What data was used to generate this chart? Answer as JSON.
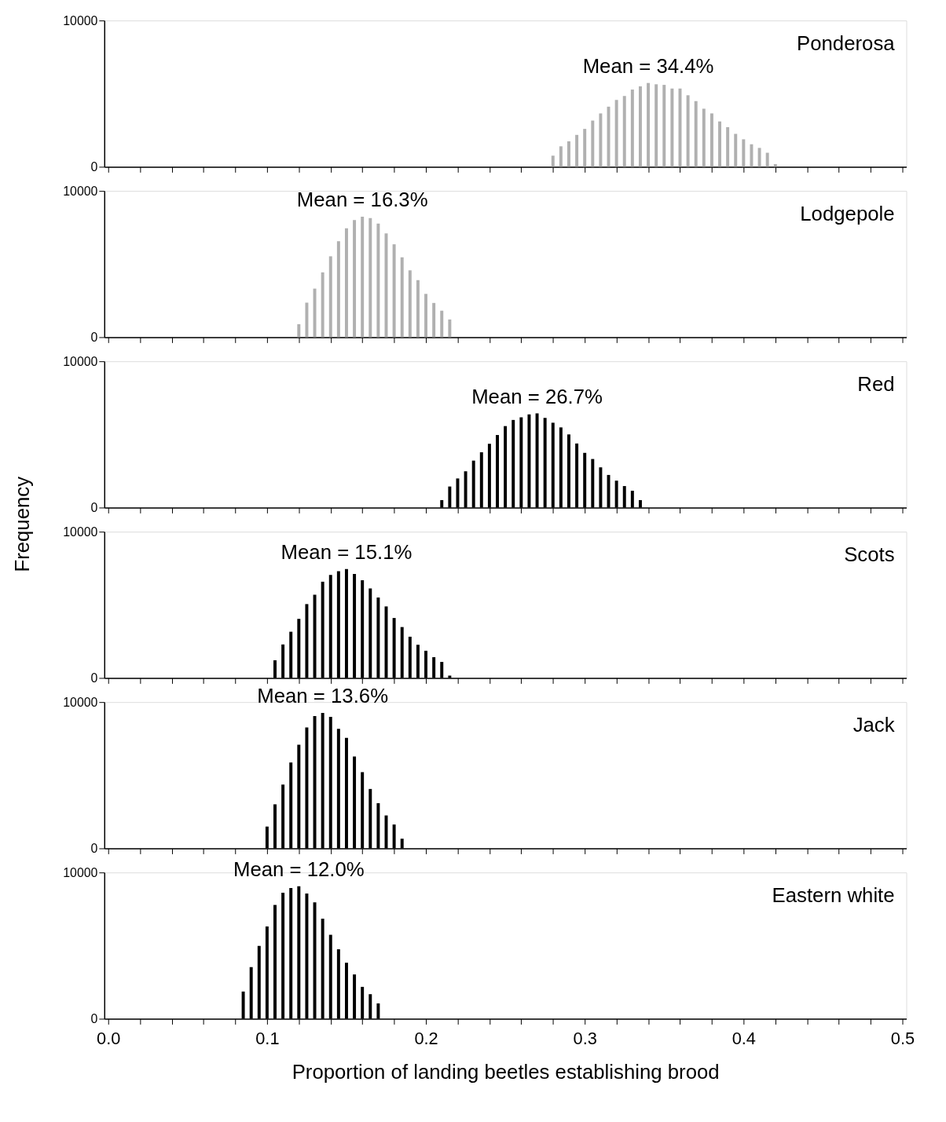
{
  "chart_data": [
    {
      "type": "bar",
      "title": "Ponderosa",
      "color": "#b0b0b0",
      "annotations": [
        "Mean = 34.4%"
      ],
      "xlim": [
        0,
        0.5
      ],
      "ylim": [
        0,
        10000
      ],
      "yticks": [
        0,
        10000
      ],
      "tick_labels": "y",
      "grid": false,
      "xticks": [
        {
          "value": 0,
          "label": null
        },
        {
          "value": 0.02,
          "label": null
        },
        {
          "value": 0.04,
          "label": null
        },
        {
          "value": 0.06,
          "label": null
        },
        {
          "value": 0.08,
          "label": null
        },
        {
          "value": 0.1,
          "label": null
        },
        {
          "value": 0.12,
          "label": null
        },
        {
          "value": 0.14,
          "label": null
        },
        {
          "value": 0.16,
          "label": null
        },
        {
          "value": 0.18,
          "label": null
        },
        {
          "value": 0.2,
          "label": null
        },
        {
          "value": 0.22,
          "label": null
        },
        {
          "value": 0.24,
          "label": null
        },
        {
          "value": 0.26,
          "label": null
        },
        {
          "value": 0.28,
          "label": null
        },
        {
          "value": 0.3,
          "label": null
        },
        {
          "value": 0.32,
          "label": null
        },
        {
          "value": 0.34,
          "label": null
        },
        {
          "value": 0.36,
          "label": null
        },
        {
          "value": 0.38,
          "label": null
        },
        {
          "value": 0.4,
          "label": null
        },
        {
          "value": 0.42,
          "label": null
        },
        {
          "value": 0.44,
          "label": null
        },
        {
          "value": 0.46,
          "label": null
        },
        {
          "value": 0.48,
          "label": null
        },
        {
          "value": 0.5,
          "label": null
        }
      ],
      "x": [
        0.28,
        0.285,
        0.29,
        0.295,
        0.3,
        0.305,
        0.31,
        0.315,
        0.32,
        0.325,
        0.33,
        0.335,
        0.34,
        0.345,
        0.35,
        0.355,
        0.36,
        0.365,
        0.37,
        0.375,
        0.38,
        0.385,
        0.39,
        0.395,
        0.4,
        0.405,
        0.41,
        0.415,
        0.42
      ],
      "values": [
        760,
        1400,
        1740,
        2180,
        2590,
        3160,
        3650,
        4110,
        4570,
        4840,
        5280,
        5500,
        5730,
        5640,
        5600,
        5350,
        5350,
        4890,
        4490,
        3970,
        3650,
        3100,
        2710,
        2250,
        1880,
        1540,
        1290,
        960,
        180
      ]
    },
    {
      "type": "bar",
      "title": "Lodgepole",
      "color": "#b0b0b0",
      "annotations": [
        "Mean = 16.3%"
      ],
      "xlim": [
        0,
        0.5
      ],
      "ylim": [
        0,
        10000
      ],
      "yticks": [
        0,
        10000
      ],
      "tick_labels": "y",
      "grid": false,
      "xticks": [
        {
          "value": 0,
          "label": null
        },
        {
          "value": 0.02,
          "label": null
        },
        {
          "value": 0.04,
          "label": null
        },
        {
          "value": 0.06,
          "label": null
        },
        {
          "value": 0.08,
          "label": null
        },
        {
          "value": 0.1,
          "label": null
        },
        {
          "value": 0.12,
          "label": null
        },
        {
          "value": 0.14,
          "label": null
        },
        {
          "value": 0.16,
          "label": null
        },
        {
          "value": 0.18,
          "label": null
        },
        {
          "value": 0.2,
          "label": null
        },
        {
          "value": 0.22,
          "label": null
        },
        {
          "value": 0.24,
          "label": null
        },
        {
          "value": 0.26,
          "label": null
        },
        {
          "value": 0.28,
          "label": null
        },
        {
          "value": 0.3,
          "label": null
        },
        {
          "value": 0.32,
          "label": null
        },
        {
          "value": 0.34,
          "label": null
        },
        {
          "value": 0.36,
          "label": null
        },
        {
          "value": 0.38,
          "label": null
        },
        {
          "value": 0.4,
          "label": null
        },
        {
          "value": 0.42,
          "label": null
        },
        {
          "value": 0.44,
          "label": null
        },
        {
          "value": 0.46,
          "label": null
        },
        {
          "value": 0.48,
          "label": null
        },
        {
          "value": 0.5,
          "label": null
        }
      ],
      "x": [
        0.12,
        0.125,
        0.13,
        0.135,
        0.14,
        0.145,
        0.15,
        0.155,
        0.16,
        0.165,
        0.17,
        0.175,
        0.18,
        0.185,
        0.19,
        0.195,
        0.2,
        0.205,
        0.21,
        0.215
      ],
      "values": [
        890,
        2360,
        3320,
        4430,
        5530,
        6560,
        7450,
        8010,
        8230,
        8140,
        7770,
        7090,
        6350,
        5460,
        4570,
        3900,
        2960,
        2340,
        1810,
        1210
      ]
    },
    {
      "type": "bar",
      "title": "Red",
      "color": "#000000",
      "annotations": [
        "Mean = 26.7%"
      ],
      "xlim": [
        0,
        0.5
      ],
      "ylim": [
        0,
        10000
      ],
      "yticks": [
        0,
        10000
      ],
      "tick_labels": "y",
      "grid": false,
      "ylabel": "Frequency",
      "xticks": [
        {
          "value": 0,
          "label": null
        },
        {
          "value": 0.02,
          "label": null
        },
        {
          "value": 0.04,
          "label": null
        },
        {
          "value": 0.06,
          "label": null
        },
        {
          "value": 0.08,
          "label": null
        },
        {
          "value": 0.1,
          "label": null
        },
        {
          "value": 0.12,
          "label": null
        },
        {
          "value": 0.14,
          "label": null
        },
        {
          "value": 0.16,
          "label": null
        },
        {
          "value": 0.18,
          "label": null
        },
        {
          "value": 0.2,
          "label": null
        },
        {
          "value": 0.22,
          "label": null
        },
        {
          "value": 0.24,
          "label": null
        },
        {
          "value": 0.26,
          "label": null
        },
        {
          "value": 0.28,
          "label": null
        },
        {
          "value": 0.3,
          "label": null
        },
        {
          "value": 0.32,
          "label": null
        },
        {
          "value": 0.34,
          "label": null
        },
        {
          "value": 0.36,
          "label": null
        },
        {
          "value": 0.38,
          "label": null
        },
        {
          "value": 0.4,
          "label": null
        },
        {
          "value": 0.42,
          "label": null
        },
        {
          "value": 0.44,
          "label": null
        },
        {
          "value": 0.46,
          "label": null
        },
        {
          "value": 0.48,
          "label": null
        },
        {
          "value": 0.5,
          "label": null
        }
      ],
      "x": [
        0.21,
        0.215,
        0.22,
        0.225,
        0.23,
        0.235,
        0.24,
        0.245,
        0.25,
        0.255,
        0.26,
        0.265,
        0.27,
        0.275,
        0.28,
        0.285,
        0.29,
        0.295,
        0.3,
        0.305,
        0.31,
        0.315,
        0.32,
        0.325,
        0.33,
        0.335
      ],
      "values": [
        510,
        1440,
        1990,
        2480,
        3210,
        3780,
        4360,
        4960,
        5570,
        5990,
        6170,
        6370,
        6440,
        6130,
        5800,
        5480,
        5000,
        4380,
        3740,
        3320,
        2750,
        2230,
        1840,
        1470,
        1150,
        510
      ]
    },
    {
      "type": "bar",
      "title": "Scots",
      "color": "#000000",
      "annotations": [
        "Mean = 15.1%"
      ],
      "xlim": [
        0,
        0.5
      ],
      "ylim": [
        0,
        10000
      ],
      "yticks": [
        0,
        10000
      ],
      "tick_labels": "y",
      "grid": false,
      "xticks": [
        {
          "value": 0,
          "label": null
        },
        {
          "value": 0.02,
          "label": null
        },
        {
          "value": 0.04,
          "label": null
        },
        {
          "value": 0.06,
          "label": null
        },
        {
          "value": 0.08,
          "label": null
        },
        {
          "value": 0.1,
          "label": null
        },
        {
          "value": 0.12,
          "label": null
        },
        {
          "value": 0.14,
          "label": null
        },
        {
          "value": 0.16,
          "label": null
        },
        {
          "value": 0.18,
          "label": null
        },
        {
          "value": 0.2,
          "label": null
        },
        {
          "value": 0.22,
          "label": null
        },
        {
          "value": 0.24,
          "label": null
        },
        {
          "value": 0.26,
          "label": null
        },
        {
          "value": 0.28,
          "label": null
        },
        {
          "value": 0.3,
          "label": null
        },
        {
          "value": 0.32,
          "label": null
        },
        {
          "value": 0.34,
          "label": null
        },
        {
          "value": 0.36,
          "label": null
        },
        {
          "value": 0.38,
          "label": null
        },
        {
          "value": 0.4,
          "label": null
        },
        {
          "value": 0.42,
          "label": null
        },
        {
          "value": 0.44,
          "label": null
        },
        {
          "value": 0.46,
          "label": null
        },
        {
          "value": 0.48,
          "label": null
        },
        {
          "value": 0.5,
          "label": null
        }
      ],
      "x": [
        0.105,
        0.11,
        0.115,
        0.12,
        0.125,
        0.13,
        0.135,
        0.14,
        0.145,
        0.15,
        0.155,
        0.16,
        0.165,
        0.17,
        0.175,
        0.18,
        0.185,
        0.19,
        0.195,
        0.2,
        0.205,
        0.21,
        0.215
      ],
      "values": [
        1210,
        2290,
        3160,
        4040,
        5050,
        5690,
        6580,
        7040,
        7300,
        7450,
        7110,
        6680,
        6120,
        5500,
        4890,
        4100,
        3480,
        2820,
        2270,
        1860,
        1420,
        1100,
        160
      ]
    },
    {
      "type": "bar",
      "title": "Jack",
      "color": "#000000",
      "annotations": [
        "Mean = 13.6%"
      ],
      "xlim": [
        0,
        0.5
      ],
      "ylim": [
        0,
        10000
      ],
      "yticks": [
        0,
        10000
      ],
      "tick_labels": "y",
      "grid": false,
      "xticks": [
        {
          "value": 0,
          "label": null
        },
        {
          "value": 0.02,
          "label": null
        },
        {
          "value": 0.04,
          "label": null
        },
        {
          "value": 0.06,
          "label": null
        },
        {
          "value": 0.08,
          "label": null
        },
        {
          "value": 0.1,
          "label": null
        },
        {
          "value": 0.12,
          "label": null
        },
        {
          "value": 0.14,
          "label": null
        },
        {
          "value": 0.16,
          "label": null
        },
        {
          "value": 0.18,
          "label": null
        },
        {
          "value": 0.2,
          "label": null
        },
        {
          "value": 0.22,
          "label": null
        },
        {
          "value": 0.24,
          "label": null
        },
        {
          "value": 0.26,
          "label": null
        },
        {
          "value": 0.28,
          "label": null
        },
        {
          "value": 0.3,
          "label": null
        },
        {
          "value": 0.32,
          "label": null
        },
        {
          "value": 0.34,
          "label": null
        },
        {
          "value": 0.36,
          "label": null
        },
        {
          "value": 0.38,
          "label": null
        },
        {
          "value": 0.4,
          "label": null
        },
        {
          "value": 0.42,
          "label": null
        },
        {
          "value": 0.44,
          "label": null
        },
        {
          "value": 0.46,
          "label": null
        },
        {
          "value": 0.48,
          "label": null
        },
        {
          "value": 0.5,
          "label": null
        }
      ],
      "x": [
        0.1,
        0.105,
        0.11,
        0.115,
        0.12,
        0.125,
        0.13,
        0.135,
        0.14,
        0.145,
        0.15,
        0.155,
        0.16,
        0.165,
        0.17,
        0.175,
        0.18,
        0.185
      ],
      "values": [
        1490,
        3010,
        4360,
        5870,
        7090,
        8260,
        9040,
        9260,
        8990,
        8170,
        7550,
        6280,
        5210,
        4060,
        3090,
        2250,
        1630,
        660
      ]
    },
    {
      "type": "bar",
      "title": "Eastern white",
      "color": "#000000",
      "annotations": [
        "Mean = 12.0%"
      ],
      "xlim": [
        0,
        0.5
      ],
      "ylim": [
        0,
        10000
      ],
      "yticks": [
        0,
        10000
      ],
      "grid": false,
      "xlabel": "Proportion of landing beetles establishing brood",
      "xticks": [
        {
          "value": 0,
          "label": "0.0"
        },
        {
          "value": 0.02,
          "label": null
        },
        {
          "value": 0.04,
          "label": null
        },
        {
          "value": 0.06,
          "label": null
        },
        {
          "value": 0.08,
          "label": null
        },
        {
          "value": 0.1,
          "label": "0.1"
        },
        {
          "value": 0.12,
          "label": null
        },
        {
          "value": 0.14,
          "label": null
        },
        {
          "value": 0.16,
          "label": null
        },
        {
          "value": 0.18,
          "label": null
        },
        {
          "value": 0.2,
          "label": "0.2"
        },
        {
          "value": 0.22,
          "label": null
        },
        {
          "value": 0.24,
          "label": null
        },
        {
          "value": 0.26,
          "label": null
        },
        {
          "value": 0.28,
          "label": null
        },
        {
          "value": 0.3,
          "label": "0.3"
        },
        {
          "value": 0.32,
          "label": null
        },
        {
          "value": 0.34,
          "label": null
        },
        {
          "value": 0.36,
          "label": null
        },
        {
          "value": 0.38,
          "label": null
        },
        {
          "value": 0.4,
          "label": "0.4"
        },
        {
          "value": 0.42,
          "label": null
        },
        {
          "value": 0.44,
          "label": null
        },
        {
          "value": 0.46,
          "label": null
        },
        {
          "value": 0.48,
          "label": null
        },
        {
          "value": 0.5,
          "label": "0.5"
        }
      ],
      "x": [
        0.085,
        0.09,
        0.095,
        0.1,
        0.105,
        0.11,
        0.115,
        0.12,
        0.125,
        0.13,
        0.135,
        0.14,
        0.145,
        0.15,
        0.155,
        0.16,
        0.165,
        0.17
      ],
      "values": [
        1860,
        3530,
        4980,
        6310,
        7780,
        8620,
        8940,
        9060,
        8560,
        7960,
        6840,
        5740,
        4750,
        3830,
        3030,
        2180,
        1680,
        1050
      ]
    }
  ]
}
